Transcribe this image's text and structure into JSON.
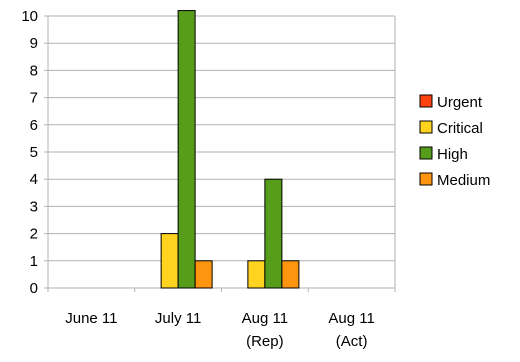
{
  "chart_data": {
    "type": "bar",
    "categories": [
      [
        "June 11"
      ],
      [
        "July 11"
      ],
      [
        "Aug 11",
        "(Rep)"
      ],
      [
        "Aug 11",
        "(Act)"
      ]
    ],
    "series": [
      {
        "name": "Urgent",
        "color": "#ff420e",
        "values": [
          0,
          0,
          0,
          0
        ]
      },
      {
        "name": "Critical",
        "color": "#ffd320",
        "values": [
          0,
          2,
          1,
          0
        ]
      },
      {
        "name": "High",
        "color": "#579d1c",
        "values": [
          0,
          10.2,
          4,
          0
        ]
      },
      {
        "name": "Medium",
        "color": "#ff950e",
        "values": [
          0,
          1,
          1,
          0
        ]
      }
    ],
    "ylim": [
      0,
      10
    ],
    "yticks": [
      "0",
      "1",
      "2",
      "3",
      "4",
      "5",
      "6",
      "7",
      "8",
      "9",
      "10"
    ],
    "grid": true,
    "legend_position": "right",
    "title": "",
    "xlabel": "",
    "ylabel": ""
  }
}
